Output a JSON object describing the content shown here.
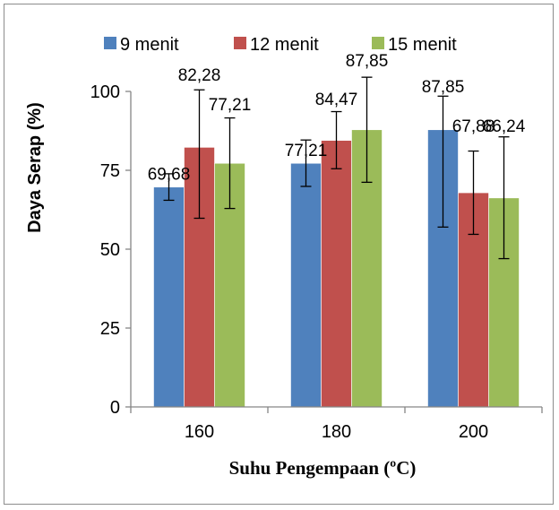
{
  "chart_data": {
    "type": "bar",
    "categories": [
      "160",
      "180",
      "200"
    ],
    "series": [
      {
        "name": "9 menit",
        "color": "#4f81bd",
        "values": [
          69.68,
          77.21,
          87.85
        ],
        "labels": [
          "69,68",
          "77,21",
          "87,85"
        ],
        "err_low": [
          65.5,
          69.9,
          57.0
        ],
        "err_high": [
          73.9,
          84.6,
          98.5
        ]
      },
      {
        "name": "12 menit",
        "color": "#c0504d",
        "values": [
          82.28,
          84.47,
          67.88
        ],
        "labels": [
          "82,28",
          "84,47",
          "67,88"
        ],
        "err_low": [
          59.8,
          75.5,
          54.7
        ],
        "err_high": [
          100.5,
          93.6,
          81.1
        ]
      },
      {
        "name": "15 menit",
        "color": "#9bbb59",
        "values": [
          77.21,
          87.85,
          66.24
        ],
        "labels": [
          "77,21",
          "87,85",
          "66,24"
        ],
        "err_low": [
          62.9,
          71.2,
          47.0
        ],
        "err_high": [
          91.6,
          104.5,
          85.6
        ]
      }
    ],
    "ylabel": "Daya Serap (%)",
    "xlabel": "Suhu Pengempaan (ºC)",
    "ylim": [
      0,
      100
    ],
    "yticks": [
      0,
      25,
      50,
      75,
      100
    ],
    "legend_position": "top",
    "grid": false
  }
}
